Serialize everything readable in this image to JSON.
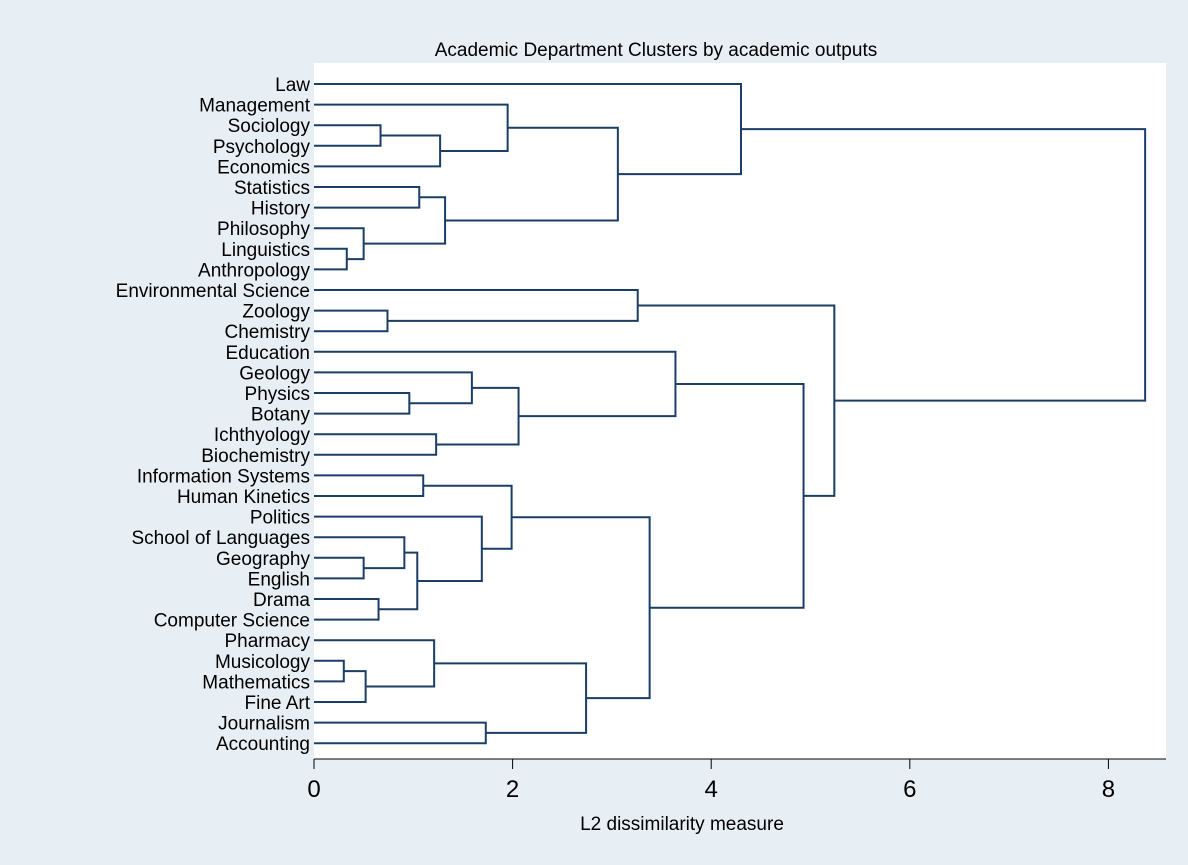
{
  "chart_data": {
    "type": "dendrogram",
    "title": "Academic Department Clusters by academic outputs",
    "xlabel": "L2 dissimilarity measure",
    "xlim": [
      0,
      8.5
    ],
    "xticks": [
      0,
      2,
      4,
      6,
      8
    ],
    "leaves": [
      "Law",
      "Management",
      "Sociology",
      "Psychology",
      "Economics",
      "Statistics",
      "History",
      "Philosophy",
      "Linguistics",
      "Anthropology",
      "Environmental Science",
      "Zoology",
      "Chemistry",
      "Education",
      "Geology",
      "Physics",
      "Botany",
      "Ichthyology",
      "Biochemistry",
      "Information Systems",
      "Human Kinetics",
      "Politics",
      "School of Languages",
      "Geography",
      "English",
      "Drama",
      "Computer Science",
      "Pharmacy",
      "Musicology",
      "Mathematics",
      "Fine Art",
      "Journalism",
      "Accounting"
    ],
    "merges": [
      {
        "id": "n1",
        "children": [
          "Sociology",
          "Psychology"
        ],
        "height": 0.67
      },
      {
        "id": "n2",
        "children": [
          "n1",
          "Economics"
        ],
        "height": 1.27
      },
      {
        "id": "n3",
        "children": [
          "Management",
          "n2"
        ],
        "height": 1.95
      },
      {
        "id": "n4",
        "children": [
          "Statistics",
          "History"
        ],
        "height": 1.06
      },
      {
        "id": "n5",
        "children": [
          "Linguistics",
          "Anthropology"
        ],
        "height": 0.33
      },
      {
        "id": "n6",
        "children": [
          "Philosophy",
          "n5"
        ],
        "height": 0.5
      },
      {
        "id": "n7",
        "children": [
          "n4",
          "n6"
        ],
        "height": 1.32
      },
      {
        "id": "n8",
        "children": [
          "n3",
          "n7"
        ],
        "height": 3.06
      },
      {
        "id": "n9",
        "children": [
          "Law",
          "n8"
        ],
        "height": 4.3
      },
      {
        "id": "n10",
        "children": [
          "Zoology",
          "Chemistry"
        ],
        "height": 0.74
      },
      {
        "id": "n11",
        "children": [
          "Environmental Science",
          "n10"
        ],
        "height": 3.26
      },
      {
        "id": "n12",
        "children": [
          "Physics",
          "Botany"
        ],
        "height": 0.96
      },
      {
        "id": "n13",
        "children": [
          "Geology",
          "n12"
        ],
        "height": 1.59
      },
      {
        "id": "n14",
        "children": [
          "Ichthyology",
          "Biochemistry"
        ],
        "height": 1.23
      },
      {
        "id": "n15",
        "children": [
          "n13",
          "n14"
        ],
        "height": 2.06
      },
      {
        "id": "n16",
        "children": [
          "Education",
          "n15"
        ],
        "height": 3.64
      },
      {
        "id": "n17",
        "children": [
          "Information Systems",
          "Human Kinetics"
        ],
        "height": 1.1
      },
      {
        "id": "n18",
        "children": [
          "Geography",
          "English"
        ],
        "height": 0.5
      },
      {
        "id": "n19",
        "children": [
          "School of Languages",
          "n18"
        ],
        "height": 0.91
      },
      {
        "id": "n20",
        "children": [
          "Drama",
          "Computer Science"
        ],
        "height": 0.65
      },
      {
        "id": "n21",
        "children": [
          "n19",
          "n20"
        ],
        "height": 1.04
      },
      {
        "id": "n22",
        "children": [
          "Politics",
          "n21"
        ],
        "height": 1.69
      },
      {
        "id": "n23",
        "children": [
          "n17",
          "n22"
        ],
        "height": 1.99
      },
      {
        "id": "n24",
        "children": [
          "Musicology",
          "Mathematics"
        ],
        "height": 0.3
      },
      {
        "id": "n25",
        "children": [
          "n24",
          "Fine Art"
        ],
        "height": 0.52
      },
      {
        "id": "n26",
        "children": [
          "Pharmacy",
          "n25"
        ],
        "height": 1.21
      },
      {
        "id": "n27",
        "children": [
          "Journalism",
          "Accounting"
        ],
        "height": 1.73
      },
      {
        "id": "n28",
        "children": [
          "n26",
          "n27"
        ],
        "height": 2.74
      },
      {
        "id": "n29",
        "children": [
          "n23",
          "n28"
        ],
        "height": 3.38
      },
      {
        "id": "n30",
        "children": [
          "n16",
          "n29"
        ],
        "height": 4.93
      },
      {
        "id": "n31",
        "children": [
          "n11",
          "n30"
        ],
        "height": 5.24
      },
      {
        "id": "n32",
        "children": [
          "n9",
          "n31"
        ],
        "height": 8.37
      }
    ],
    "colors": {
      "background": "#e8eff4",
      "plot_region": "#ffffff",
      "branch": "#1a3e66"
    },
    "grid": false,
    "legend": "none"
  }
}
